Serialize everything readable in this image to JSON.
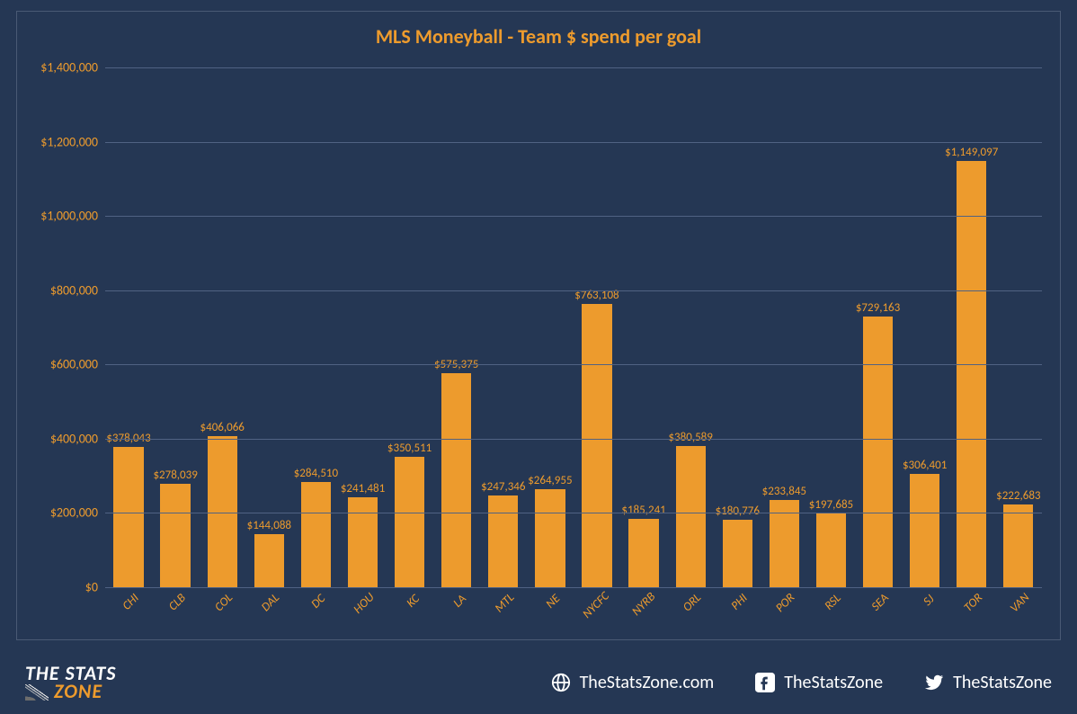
{
  "chart": {
    "type": "bar",
    "title": "MLS Moneyball - Team $ spend per goal",
    "title_color": "#ed9b2d",
    "title_fontsize": 22,
    "background_color": "#253754",
    "bar_color": "#ed9b2d",
    "grid_color": "#506283",
    "axis_label_color": "#ed9b2d",
    "axis_label_fontsize": 14,
    "data_label_fontsize": 13,
    "x_label_fontsize": 13.5,
    "x_label_rotation_deg": -45,
    "bar_width_ratio": 0.64,
    "ylim": [
      0,
      1400000
    ],
    "yticks": [
      {
        "v": 0,
        "label": "$0"
      },
      {
        "v": 200000,
        "label": "$200,000"
      },
      {
        "v": 400000,
        "label": "$400,000"
      },
      {
        "v": 600000,
        "label": "$600,000"
      },
      {
        "v": 800000,
        "label": "$800,000"
      },
      {
        "v": 1000000,
        "label": "$1,000,000"
      },
      {
        "v": 1200000,
        "label": "$1,200,000"
      },
      {
        "v": 1400000,
        "label": "$1,400,000"
      }
    ],
    "categories": [
      {
        "code": "CHI",
        "value": 378043,
        "label": "$378,043"
      },
      {
        "code": "CLB",
        "value": 278039,
        "label": "$278,039"
      },
      {
        "code": "COL",
        "value": 406066,
        "label": "$406,066"
      },
      {
        "code": "DAL",
        "value": 144088,
        "label": "$144,088"
      },
      {
        "code": "DC",
        "value": 284510,
        "label": "$284,510"
      },
      {
        "code": "HOU",
        "value": 241481,
        "label": "$241,481"
      },
      {
        "code": "KC",
        "value": 350511,
        "label": "$350,511"
      },
      {
        "code": "LA",
        "value": 575375,
        "label": "$575,375"
      },
      {
        "code": "MTL",
        "value": 247346,
        "label": "$247,346"
      },
      {
        "code": "NE",
        "value": 264955,
        "label": "$264,955"
      },
      {
        "code": "NYCFC",
        "value": 763108,
        "label": "$763,108"
      },
      {
        "code": "NYRB",
        "value": 185241,
        "label": "$185,241"
      },
      {
        "code": "ORL",
        "value": 380589,
        "label": "$380,589"
      },
      {
        "code": "PHI",
        "value": 180776,
        "label": "$180,776"
      },
      {
        "code": "POR",
        "value": 233845,
        "label": "$233,845"
      },
      {
        "code": "RSL",
        "value": 197685,
        "label": "$197,685"
      },
      {
        "code": "SEA",
        "value": 729163,
        "label": "$729,163"
      },
      {
        "code": "SJ",
        "value": 306401,
        "label": "$306,401"
      },
      {
        "code": "TOR",
        "value": 1149097,
        "label": "$1,149,097"
      },
      {
        "code": "VAN",
        "value": 222683,
        "label": "$222,683"
      }
    ]
  },
  "footer": {
    "logo_line1": "THE STATS",
    "logo_line2": "ZONE",
    "website": "TheStatsZone.com",
    "facebook": "TheStatsZone",
    "twitter": "TheStatsZone"
  }
}
